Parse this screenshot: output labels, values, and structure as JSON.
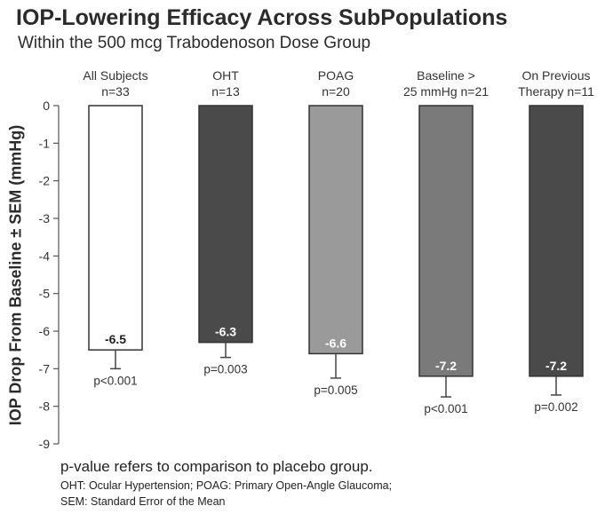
{
  "chart_data": {
    "type": "bar",
    "title": "IOP-Lowering Efficacy Across SubPopulations",
    "subtitle": "Within the 500 mcg Trabodenoson Dose Group",
    "ylabel": "IOP Drop From Baseline ± SEM (mmHg)",
    "xlabel": "",
    "ylim": [
      -9,
      0
    ],
    "yticks": [
      "0",
      "-1",
      "-2",
      "-3",
      "-4",
      "-5",
      "-6",
      "-7",
      "-8",
      "-9"
    ],
    "grid": false,
    "categories": [
      {
        "line1": "All Subjects",
        "line2": "n=33"
      },
      {
        "line1": "OHT",
        "line2": "n=13"
      },
      {
        "line1": "POAG",
        "line2": "n=20"
      },
      {
        "line1": "Baseline >",
        "line2": "25 mmHg n=21"
      },
      {
        "line1": "On Previous",
        "line2": "Therapy n=11"
      }
    ],
    "values": [
      -6.5,
      -6.3,
      -6.6,
      -7.2,
      -7.2
    ],
    "value_labels": [
      "-6.5",
      "-6.3",
      "-6.6",
      "-7.2",
      "-7.2"
    ],
    "sem": [
      0.5,
      0.4,
      0.65,
      0.55,
      0.5
    ],
    "p_values": [
      "p<0.001",
      "p=0.003",
      "p=0.005",
      "p<0.001",
      "p=0.002"
    ],
    "bar_colors": [
      "#ffffff",
      "#4a4a4a",
      "#9a9a9a",
      "#7a7a7a",
      "#4a4a4a"
    ],
    "bar_label_colors": [
      "#222222",
      "#ffffff",
      "#ffffff",
      "#ffffff",
      "#ffffff"
    ]
  },
  "footer": {
    "main": "p-value refers to comparison to placebo group.",
    "note1": "OHT:  Ocular Hypertension; POAG:  Primary Open-Angle Glaucoma;",
    "note2": "SEM: Standard Error of the Mean"
  }
}
